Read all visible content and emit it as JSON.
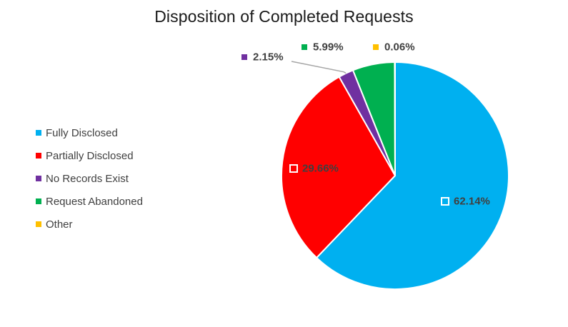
{
  "chart_data": {
    "type": "pie",
    "title": "Disposition of Completed Requests",
    "categories": [
      "Fully Disclosed",
      "Partially Disclosed",
      "No Records Exist",
      "Request Abandoned",
      "Other"
    ],
    "values": [
      62.14,
      29.66,
      2.15,
      5.99,
      0.06
    ],
    "value_labels": [
      "62.14%",
      "29.66%",
      "2.15%",
      "5.99%",
      "0.06%"
    ],
    "colors": [
      "#00B0F0",
      "#FF0000",
      "#7030A0",
      "#00B050",
      "#FFC000"
    ],
    "legend_position": "left"
  }
}
